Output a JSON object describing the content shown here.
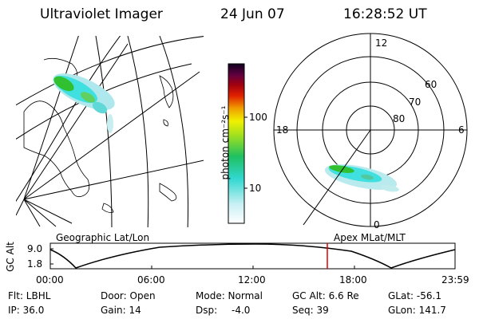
{
  "header": {
    "title": "Ultraviolet Imager",
    "date": "24 Jun 07",
    "time": "16:28:52 UT"
  },
  "colorbar": {
    "unit_label": "photon cm⁻²s⁻¹",
    "ticks": [
      {
        "label": "100",
        "value": 100
      },
      {
        "label": "10",
        "value": 10
      }
    ]
  },
  "polar": {
    "mlt_labels": [
      {
        "label": "12",
        "pos": "top"
      },
      {
        "label": "18",
        "pos": "left"
      },
      {
        "label": "6",
        "pos": "right"
      },
      {
        "label": "0",
        "pos": "bottom"
      }
    ],
    "lat_labels": [
      "60",
      "70",
      "80"
    ]
  },
  "map_labels": {
    "left": "Geographic Lat/Lon",
    "right": "Apex MLat/MLT"
  },
  "alt_plot": {
    "ylabel": "GC Alt",
    "yticks": [
      "9.0",
      "1.8"
    ],
    "xticks": [
      "00:00",
      "06:00",
      "12:00",
      "18:00",
      "23:59"
    ],
    "current_time": "16:28:52"
  },
  "info": {
    "flt": "Flt: LBHL",
    "door": "Door: Open",
    "mode": "Mode: Normal",
    "gc_alt": "GC Alt: 6.6 Re",
    "glat": "GLat: -56.1",
    "ip": "IP: 36.0",
    "gain": "Gain: 14",
    "dsp_label": "Dsp:",
    "dsp_value": "-4.0",
    "seq": "Seq: 39",
    "glon": "GLon: 141.7"
  },
  "colors": {
    "aurora_cyan": "#40e0e0",
    "aurora_green": "#30c030",
    "marker_red": "#e00000"
  }
}
